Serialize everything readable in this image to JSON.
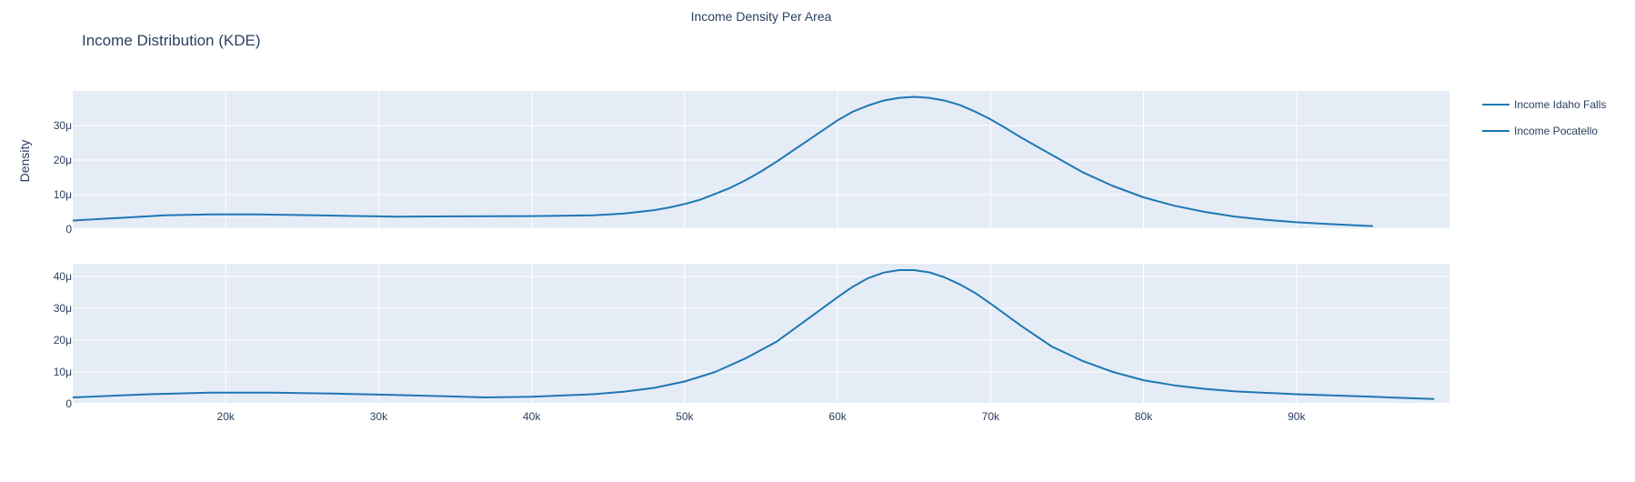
{
  "figure": {
    "title": "Income Distribution (KDE)",
    "subtitle": "Income Density Per Area",
    "ylabel": "Density"
  },
  "colors": {
    "plot_bg": "#e5ecf6",
    "grid": "#ffffff",
    "line": "#1f77b4",
    "text": "#2a3f5f"
  },
  "chart_data": [
    {
      "type": "line",
      "name": "Income Idaho Falls",
      "x": [
        10000,
        14000,
        16000,
        19000,
        22000,
        26000,
        30000,
        31000,
        35000,
        40000,
        44000,
        46000,
        48000,
        49000,
        50000,
        51000,
        52000,
        53000,
        54000,
        55000,
        56000,
        57000,
        58000,
        59000,
        60000,
        61000,
        62000,
        63000,
        64000,
        65000,
        66000,
        67000,
        68000,
        69000,
        70000,
        71000,
        72000,
        74000,
        76000,
        78000,
        80000,
        82000,
        84000,
        86000,
        88000,
        90000,
        92000,
        95000
      ],
      "y": [
        2.5,
        3.5,
        4.0,
        4.3,
        4.3,
        4.0,
        3.7,
        3.6,
        3.7,
        3.8,
        4.0,
        4.5,
        5.5,
        6.3,
        7.3,
        8.5,
        10.2,
        12.0,
        14.2,
        16.7,
        19.5,
        22.5,
        25.5,
        28.5,
        31.5,
        34.0,
        35.8,
        37.2,
        38.0,
        38.3,
        38.0,
        37.2,
        35.9,
        34.0,
        31.8,
        29.2,
        26.5,
        21.5,
        16.5,
        12.5,
        9.2,
        6.8,
        5.0,
        3.6,
        2.7,
        2.0,
        1.5,
        0.9
      ],
      "ylim": [
        0,
        40
      ],
      "yticks": [
        0,
        10,
        20,
        30
      ],
      "ytick_labels": [
        "0",
        "10μ",
        "20μ",
        "30μ"
      ]
    },
    {
      "type": "line",
      "name": "Income Pocatello",
      "x": [
        10000,
        15000,
        19000,
        23000,
        27000,
        31000,
        37000,
        40000,
        44000,
        46000,
        48000,
        50000,
        52000,
        54000,
        56000,
        58000,
        60000,
        61000,
        62000,
        63000,
        64000,
        65000,
        66000,
        67000,
        68000,
        69000,
        70000,
        72000,
        74000,
        76000,
        78000,
        80000,
        82000,
        84000,
        86000,
        90000,
        95000,
        99000
      ],
      "y": [
        2.0,
        3.0,
        3.5,
        3.5,
        3.2,
        2.8,
        2.0,
        2.2,
        3.0,
        3.8,
        5.0,
        7.0,
        10.0,
        14.3,
        19.5,
        26.5,
        33.5,
        36.8,
        39.5,
        41.2,
        42.0,
        42.0,
        41.3,
        39.7,
        37.5,
        34.8,
        31.5,
        24.5,
        18.0,
        13.5,
        10.0,
        7.4,
        5.8,
        4.7,
        3.9,
        3.0,
        2.2,
        1.5
      ],
      "ylim": [
        0,
        44
      ],
      "yticks": [
        0,
        10,
        20,
        30,
        40
      ],
      "ytick_labels": [
        "0",
        "10μ",
        "20μ",
        "30μ",
        "40μ"
      ]
    }
  ],
  "x_axis": {
    "range": [
      10000,
      100000
    ],
    "ticks": [
      20000,
      30000,
      40000,
      50000,
      60000,
      70000,
      80000,
      90000
    ],
    "tick_labels": [
      "20k",
      "30k",
      "40k",
      "50k",
      "60k",
      "70k",
      "80k",
      "90k"
    ]
  },
  "legend": {
    "placement": "top-right",
    "items": [
      "Income Idaho Falls",
      "Income Pocatello"
    ]
  }
}
